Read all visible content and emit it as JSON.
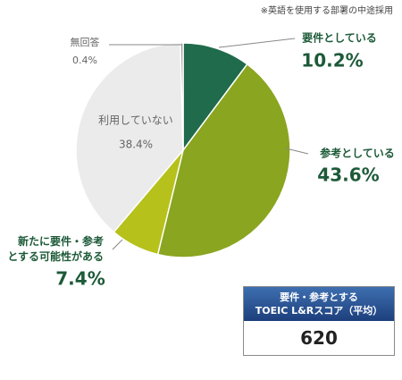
{
  "chart_data": {
    "type": "pie",
    "note": "※英語を使用する部署の中途採用",
    "categories": [
      "要件としている",
      "参考としている",
      "新たに要件・参考とする可能性がある",
      "利用していない",
      "無回答"
    ],
    "values": [
      10.2,
      43.6,
      7.4,
      38.4,
      0.4
    ],
    "value_labels": [
      "10.2%",
      "43.6%",
      "7.4%",
      "38.4%",
      "0.4%"
    ],
    "colors": [
      "#1f6b4b",
      "#8aa51f",
      "#b6c11b",
      "#ebebeb",
      "#9c9c9c"
    ]
  },
  "score_box": {
    "title": "要件・参考とする",
    "subtitle": "TOEIC L&Rスコア（平均）",
    "value": "620"
  }
}
